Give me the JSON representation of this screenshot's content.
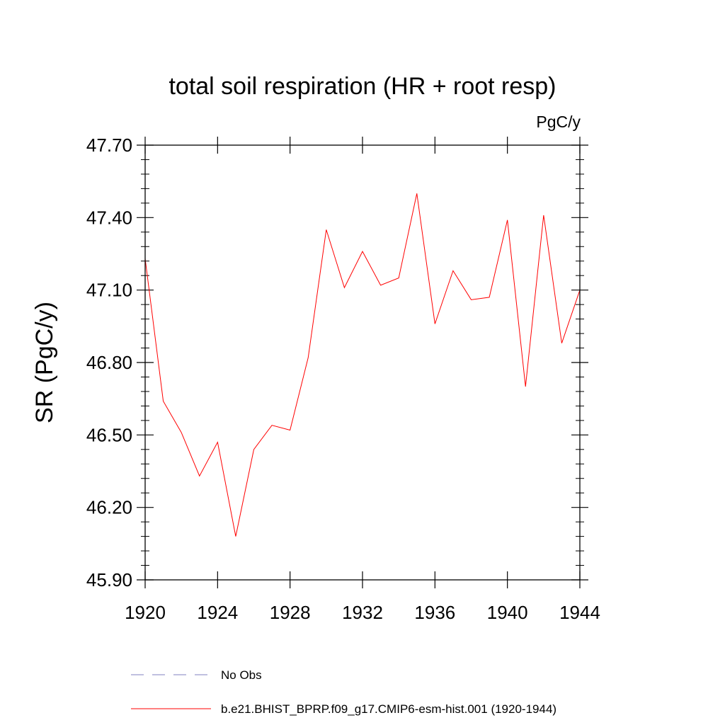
{
  "chart_data": {
    "type": "line",
    "title": "total soil respiration (HR + root resp)",
    "units": "PgC/y",
    "xlabel": "",
    "ylabel": "SR  (PgC/y)",
    "xlim": [
      1920,
      1944
    ],
    "ylim": [
      45.9,
      47.7
    ],
    "xticks": [
      "1920",
      "1924",
      "1928",
      "1932",
      "1936",
      "1940",
      "1944"
    ],
    "yticks": [
      "45.90",
      "46.20",
      "46.50",
      "46.80",
      "47.10",
      "47.40",
      "47.70"
    ],
    "grid": false,
    "legend_position": "bottom",
    "legend": [
      {
        "label": "No Obs",
        "color": "#8080c0",
        "style": "dashed"
      },
      {
        "label": "b.e21.BHIST_BPRP.f09_g17.CMIP6-esm-hist.001 (1920-1944)",
        "color": "#ff0000",
        "style": "solid"
      }
    ],
    "series": [
      {
        "name": "b.e21.BHIST_BPRP.f09_g17.CMIP6-esm-hist.001 (1920-1944)",
        "color": "#ff0000",
        "x": [
          1920,
          1921,
          1922,
          1923,
          1924,
          1925,
          1926,
          1927,
          1928,
          1929,
          1930,
          1931,
          1932,
          1933,
          1934,
          1935,
          1936,
          1937,
          1938,
          1939,
          1940,
          1941,
          1942,
          1943,
          1944
        ],
        "y": [
          47.23,
          46.64,
          46.51,
          46.33,
          46.47,
          46.08,
          46.44,
          46.54,
          46.52,
          46.82,
          47.35,
          47.11,
          47.26,
          47.12,
          47.15,
          47.5,
          46.96,
          47.18,
          47.06,
          47.07,
          47.39,
          46.7,
          47.41,
          46.88,
          47.1
        ]
      }
    ]
  }
}
